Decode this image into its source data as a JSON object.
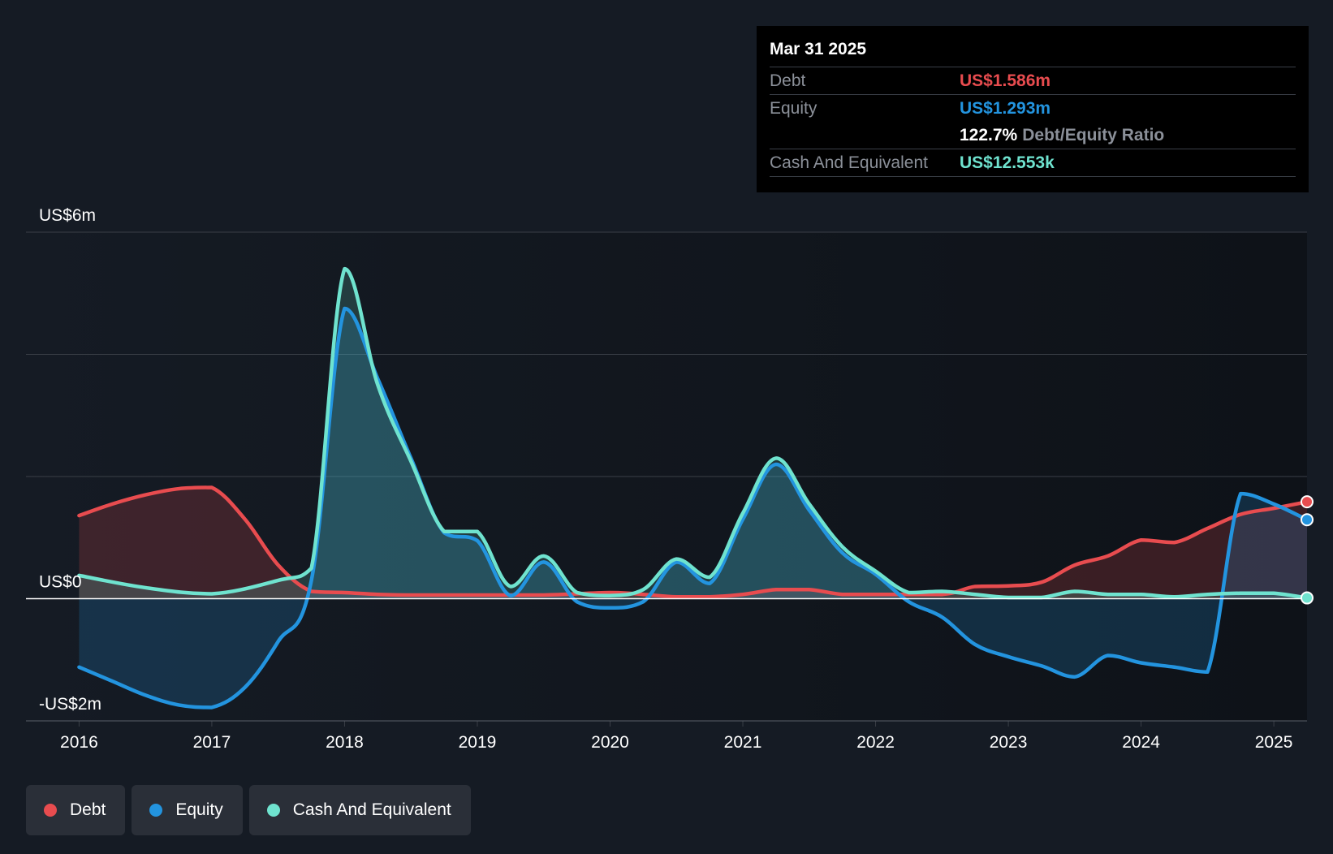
{
  "chart_data": {
    "type": "area",
    "y_unit": "US$m",
    "ylim": [
      -2,
      6
    ],
    "y_tick_labels": [
      {
        "value": 6,
        "label": "US$6m"
      },
      {
        "value": 0,
        "label": "US$0"
      },
      {
        "value": -2,
        "label": "-US$2m"
      }
    ],
    "gridlines": [
      6,
      4,
      2,
      0,
      -2
    ],
    "xlim": [
      2015.6,
      2025.25
    ],
    "x_ticks": [
      "2016",
      "2017",
      "2018",
      "2019",
      "2020",
      "2021",
      "2022",
      "2023",
      "2024",
      "2025"
    ],
    "series": [
      {
        "name": "Debt",
        "color": "#e84c4f",
        "fill": "rgba(232,76,79,0.20)",
        "points": [
          [
            2016.0,
            1.36
          ],
          [
            2016.25,
            1.55
          ],
          [
            2016.5,
            1.7
          ],
          [
            2016.75,
            1.8
          ],
          [
            2017.0,
            1.82
          ],
          [
            2017.25,
            1.3
          ],
          [
            2017.5,
            0.55
          ],
          [
            2017.75,
            0.12
          ],
          [
            2018.0,
            0.1
          ],
          [
            2018.25,
            0.07
          ],
          [
            2018.5,
            0.06
          ],
          [
            2019.0,
            0.06
          ],
          [
            2019.5,
            0.06
          ],
          [
            2020.0,
            0.1
          ],
          [
            2020.25,
            0.07
          ],
          [
            2020.5,
            0.03
          ],
          [
            2020.75,
            0.03
          ],
          [
            2021.0,
            0.07
          ],
          [
            2021.25,
            0.15
          ],
          [
            2021.5,
            0.15
          ],
          [
            2021.75,
            0.07
          ],
          [
            2022.0,
            0.07
          ],
          [
            2022.5,
            0.07
          ],
          [
            2022.75,
            0.2
          ],
          [
            2023.0,
            0.21
          ],
          [
            2023.25,
            0.27
          ],
          [
            2023.5,
            0.55
          ],
          [
            2023.75,
            0.7
          ],
          [
            2024.0,
            0.96
          ],
          [
            2024.25,
            0.92
          ],
          [
            2024.5,
            1.15
          ],
          [
            2024.75,
            1.38
          ],
          [
            2025.0,
            1.48
          ],
          [
            2025.25,
            1.586
          ]
        ]
      },
      {
        "name": "Equity",
        "color": "#2394df",
        "fill": "rgba(35,148,223,0.20)",
        "points": [
          [
            2016.0,
            -1.12
          ],
          [
            2016.25,
            -1.35
          ],
          [
            2016.5,
            -1.58
          ],
          [
            2016.75,
            -1.74
          ],
          [
            2017.0,
            -1.78
          ],
          [
            2017.25,
            -1.45
          ],
          [
            2017.5,
            -0.7
          ],
          [
            2017.75,
            0.3
          ],
          [
            2018.0,
            4.75
          ],
          [
            2018.25,
            3.6
          ],
          [
            2018.5,
            2.3
          ],
          [
            2018.75,
            1.08
          ],
          [
            2019.0,
            0.95
          ],
          [
            2019.25,
            0.05
          ],
          [
            2019.5,
            0.6
          ],
          [
            2019.75,
            -0.05
          ],
          [
            2020.0,
            -0.15
          ],
          [
            2020.25,
            -0.05
          ],
          [
            2020.5,
            0.6
          ],
          [
            2020.75,
            0.25
          ],
          [
            2021.0,
            1.3
          ],
          [
            2021.25,
            2.2
          ],
          [
            2021.5,
            1.45
          ],
          [
            2021.75,
            0.75
          ],
          [
            2022.0,
            0.4
          ],
          [
            2022.25,
            -0.05
          ],
          [
            2022.5,
            -0.3
          ],
          [
            2022.75,
            -0.75
          ],
          [
            2023.0,
            -0.95
          ],
          [
            2023.25,
            -1.1
          ],
          [
            2023.5,
            -1.28
          ],
          [
            2023.75,
            -0.93
          ],
          [
            2024.0,
            -1.05
          ],
          [
            2024.25,
            -1.12
          ],
          [
            2024.5,
            -1.2
          ],
          [
            2024.75,
            1.72
          ],
          [
            2025.0,
            1.55
          ],
          [
            2025.25,
            1.293
          ]
        ]
      },
      {
        "name": "Cash And Equivalent",
        "color": "#6fe3cf",
        "fill": "rgba(111,227,207,0.18)",
        "points": [
          [
            2016.0,
            0.38
          ],
          [
            2016.5,
            0.18
          ],
          [
            2017.0,
            0.08
          ],
          [
            2017.5,
            0.3
          ],
          [
            2017.75,
            0.5
          ],
          [
            2018.0,
            5.4
          ],
          [
            2018.25,
            3.5
          ],
          [
            2018.5,
            2.25
          ],
          [
            2018.75,
            1.1
          ],
          [
            2019.0,
            1.1
          ],
          [
            2019.25,
            0.2
          ],
          [
            2019.5,
            0.7
          ],
          [
            2019.75,
            0.1
          ],
          [
            2020.0,
            0.05
          ],
          [
            2020.25,
            0.15
          ],
          [
            2020.5,
            0.65
          ],
          [
            2020.75,
            0.35
          ],
          [
            2021.0,
            1.4
          ],
          [
            2021.25,
            2.3
          ],
          [
            2021.5,
            1.55
          ],
          [
            2021.75,
            0.85
          ],
          [
            2022.0,
            0.45
          ],
          [
            2022.25,
            0.1
          ],
          [
            2022.5,
            0.12
          ],
          [
            2022.75,
            0.07
          ],
          [
            2023.0,
            0.02
          ],
          [
            2023.25,
            0.02
          ],
          [
            2023.5,
            0.12
          ],
          [
            2023.75,
            0.07
          ],
          [
            2024.0,
            0.07
          ],
          [
            2024.25,
            0.03
          ],
          [
            2024.5,
            0.07
          ],
          [
            2024.75,
            0.09
          ],
          [
            2025.0,
            0.09
          ],
          [
            2025.25,
            0.0126
          ]
        ]
      }
    ]
  },
  "tooltip": {
    "date": "Mar 31 2025",
    "debt_label": "Debt",
    "debt_value": "US$1.586m",
    "equity_label": "Equity",
    "equity_value": "US$1.293m",
    "ratio_value": "122.7%",
    "ratio_label": "Debt/Equity Ratio",
    "cash_label": "Cash And Equivalent",
    "cash_value": "US$12.553k"
  },
  "legend": {
    "items": [
      {
        "label": "Debt",
        "color": "#e84c4f"
      },
      {
        "label": "Equity",
        "color": "#2394df"
      },
      {
        "label": "Cash And Equivalent",
        "color": "#6fe3cf"
      }
    ]
  },
  "colors": {
    "background": "#151b24",
    "plot_background_right": "#0e1218",
    "gridline": "#3a3f47",
    "zero_line": "#ffffff"
  }
}
